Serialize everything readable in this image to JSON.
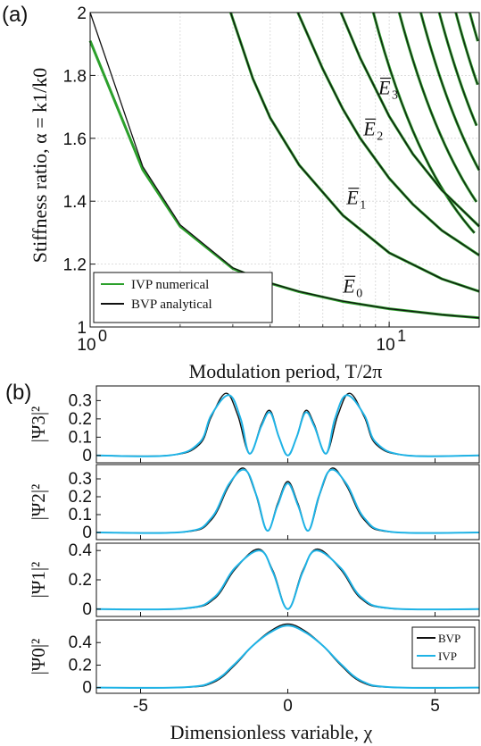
{
  "panels": {
    "a_label": "(a)",
    "b_label": "(b)"
  },
  "colors": {
    "ivp_green": "#2ca02c",
    "bvp_black": "#111111",
    "ivp_blue": "#1fb3e6",
    "grid": "#d4d4d4"
  },
  "chart_data": [
    {
      "type": "line",
      "panel": "(a)",
      "xlabel": "Modulation period, T/2π",
      "ylabel": "Stiffness ratio, α = k1/k0",
      "x_scale": "log",
      "xlim": [
        1,
        20
      ],
      "ylim": [
        1,
        2
      ],
      "x_ticks": [
        {
          "value": 1,
          "base": "10",
          "exp": "0"
        },
        {
          "value": 10,
          "base": "10",
          "exp": "1"
        }
      ],
      "y_ticks": [
        "1",
        "1.2",
        "1.4",
        "1.6",
        "1.8",
        "2"
      ],
      "grid": true,
      "legend_position": "bottom-left",
      "legend": [
        "IVP numerical",
        "BVP analytical"
      ],
      "annotations": [
        {
          "text": "E",
          "sub": "0",
          "bar": true,
          "x": 7.0,
          "y": 1.11
        },
        {
          "text": "E",
          "sub": "1",
          "bar": true,
          "x": 7.2,
          "y": 1.39
        },
        {
          "text": "E",
          "sub": "2",
          "bar": true,
          "x": 8.2,
          "y": 1.61
        },
        {
          "text": "E",
          "sub": "3",
          "bar": true,
          "x": 9.2,
          "y": 1.74
        }
      ],
      "series": [
        {
          "name": "BVP analytical",
          "mode": "n=0",
          "x": [
            1,
            1.5,
            2,
            3,
            4,
            5,
            7,
            10,
            15,
            20
          ],
          "y": [
            2.0,
            1.51,
            1.325,
            1.188,
            1.14,
            1.113,
            1.082,
            1.058,
            1.039,
            1.029
          ]
        },
        {
          "name": "IVP numerical",
          "mode": "n=0",
          "x": [
            1,
            1.5,
            2,
            3,
            4,
            5,
            7,
            10,
            15,
            20
          ],
          "y": [
            1.91,
            1.5,
            1.32,
            1.186,
            1.139,
            1.112,
            1.081,
            1.058,
            1.039,
            1.029
          ]
        },
        {
          "name": "BVP analytical",
          "mode": "n=1",
          "x": [
            2.95,
            3.5,
            4,
            5,
            7,
            10,
            15,
            20
          ],
          "y": [
            2.0,
            1.79,
            1.665,
            1.515,
            1.355,
            1.236,
            1.153,
            1.113
          ]
        },
        {
          "name": "BVP analytical",
          "mode": "n=2",
          "x": [
            4.95,
            6,
            7,
            8,
            10,
            12,
            15,
            20
          ],
          "y": [
            2.0,
            1.82,
            1.693,
            1.6,
            1.473,
            1.39,
            1.307,
            1.228
          ]
        },
        {
          "name": "BVP analytical",
          "mode": "n=3",
          "x": [
            6.9,
            8,
            10,
            12,
            15,
            20
          ],
          "y": [
            2.0,
            1.855,
            1.67,
            1.55,
            1.435,
            1.32
          ]
        }
      ],
      "extra_branches_start_x": [
        8.85,
        10.8,
        12.75,
        14.7,
        16.7,
        18.6
      ]
    },
    {
      "type": "line",
      "panel": "(b)",
      "ylabel": "|Ψ3|²",
      "xlim": [
        -6.5,
        6.5
      ],
      "ylim": [
        -0.04,
        0.38
      ],
      "y_ticks": [
        "0",
        "0.1",
        "0.2",
        "0.3"
      ],
      "series": [
        {
          "name": "BVP",
          "x": [
            -6.5,
            -4,
            -3,
            -2.6,
            -2.1,
            -1.7,
            -1.3,
            -0.9,
            -0.6,
            -0.3,
            0,
            0.3,
            0.6,
            0.9,
            1.3,
            1.7,
            2.1,
            2.6,
            3,
            4,
            6.5
          ],
          "y": [
            0,
            0.001,
            0.06,
            0.21,
            0.34,
            0.22,
            0.01,
            0.17,
            0.245,
            0.1,
            0,
            0.1,
            0.245,
            0.17,
            0.01,
            0.22,
            0.34,
            0.21,
            0.06,
            0.001,
            0
          ]
        },
        {
          "name": "IVP",
          "x": [
            -6.5,
            -4,
            -3,
            -2.6,
            -2.0,
            -1.6,
            -1.3,
            -0.9,
            -0.6,
            -0.3,
            0,
            0.3,
            0.6,
            0.9,
            1.3,
            1.6,
            2.0,
            2.6,
            3,
            4,
            6.5
          ],
          "y": [
            0,
            0.001,
            0.07,
            0.22,
            0.33,
            0.2,
            0.01,
            0.16,
            0.235,
            0.1,
            0,
            0.1,
            0.235,
            0.16,
            0.01,
            0.2,
            0.33,
            0.22,
            0.07,
            0.001,
            0
          ]
        }
      ]
    },
    {
      "type": "line",
      "panel": "(b)",
      "ylabel": "|Ψ2|²",
      "xlim": [
        -6.5,
        6.5
      ],
      "ylim": [
        -0.04,
        0.38
      ],
      "y_ticks": [
        "0",
        "0.1",
        "0.2",
        "0.3"
      ],
      "series": [
        {
          "name": "BVP",
          "x": [
            -6.5,
            -3.5,
            -2.6,
            -2.0,
            -1.5,
            -1.1,
            -0.7,
            -0.35,
            0,
            0.35,
            0.7,
            1.1,
            1.5,
            2.0,
            2.6,
            3.5,
            6.5
          ],
          "y": [
            0,
            0.003,
            0.07,
            0.26,
            0.36,
            0.22,
            0.01,
            0.16,
            0.285,
            0.16,
            0.01,
            0.22,
            0.36,
            0.26,
            0.07,
            0.003,
            0
          ]
        },
        {
          "name": "IVP",
          "x": [
            -6.5,
            -3.5,
            -2.6,
            -2.0,
            -1.45,
            -1.05,
            -0.7,
            -0.35,
            0,
            0.35,
            0.7,
            1.05,
            1.45,
            2.0,
            2.6,
            3.5,
            6.5
          ],
          "y": [
            0,
            0.004,
            0.08,
            0.27,
            0.35,
            0.2,
            0.01,
            0.15,
            0.275,
            0.15,
            0.01,
            0.2,
            0.35,
            0.27,
            0.08,
            0.004,
            0
          ]
        }
      ]
    },
    {
      "type": "line",
      "panel": "(b)",
      "ylabel": "|Ψ1|²",
      "xlim": [
        -6.5,
        6.5
      ],
      "ylim": [
        -0.05,
        0.45
      ],
      "y_ticks": [
        "0",
        "0.2",
        "0.4"
      ],
      "series": [
        {
          "name": "BVP",
          "x": [
            -6.5,
            -3.5,
            -2.5,
            -1.8,
            -1.0,
            -0.5,
            0,
            0.5,
            1.0,
            1.8,
            2.5,
            3.5,
            6.5
          ],
          "y": [
            0,
            0.004,
            0.07,
            0.27,
            0.41,
            0.26,
            0,
            0.26,
            0.41,
            0.27,
            0.07,
            0.004,
            0
          ]
        },
        {
          "name": "IVP",
          "x": [
            -6.5,
            -3.5,
            -2.5,
            -1.8,
            -0.95,
            -0.5,
            0,
            0.5,
            0.95,
            1.8,
            2.5,
            3.5,
            6.5
          ],
          "y": [
            0,
            0.005,
            0.08,
            0.28,
            0.4,
            0.25,
            0,
            0.25,
            0.4,
            0.28,
            0.08,
            0.005,
            0
          ]
        }
      ]
    },
    {
      "type": "line",
      "panel": "(b)",
      "ylabel": "|Ψ0|²",
      "xlabel": "Dimensionless variable, χ",
      "xlim": [
        -6.5,
        6.5
      ],
      "ylim": [
        -0.05,
        0.6
      ],
      "x_ticks": [
        "-5",
        "0",
        "5"
      ],
      "y_ticks": [
        "0",
        "0.2",
        "0.4"
      ],
      "legend_position": "top-right",
      "legend": [
        "BVP",
        "IVP"
      ],
      "series": [
        {
          "name": "BVP",
          "x": [
            -6.5,
            -3.5,
            -2.5,
            -1.8,
            -1.2,
            -0.6,
            0,
            0.6,
            1.2,
            1.8,
            2.5,
            3.5,
            6.5
          ],
          "y": [
            0,
            0.003,
            0.05,
            0.2,
            0.37,
            0.5,
            0.565,
            0.5,
            0.37,
            0.2,
            0.05,
            0.003,
            0
          ]
        },
        {
          "name": "IVP",
          "x": [
            -6.5,
            -3.5,
            -2.5,
            -1.8,
            -1.2,
            -0.6,
            0,
            0.6,
            1.2,
            1.8,
            2.5,
            3.5,
            6.5
          ],
          "y": [
            0,
            0.004,
            0.06,
            0.21,
            0.37,
            0.49,
            0.55,
            0.49,
            0.37,
            0.21,
            0.06,
            0.004,
            0
          ]
        }
      ]
    }
  ]
}
